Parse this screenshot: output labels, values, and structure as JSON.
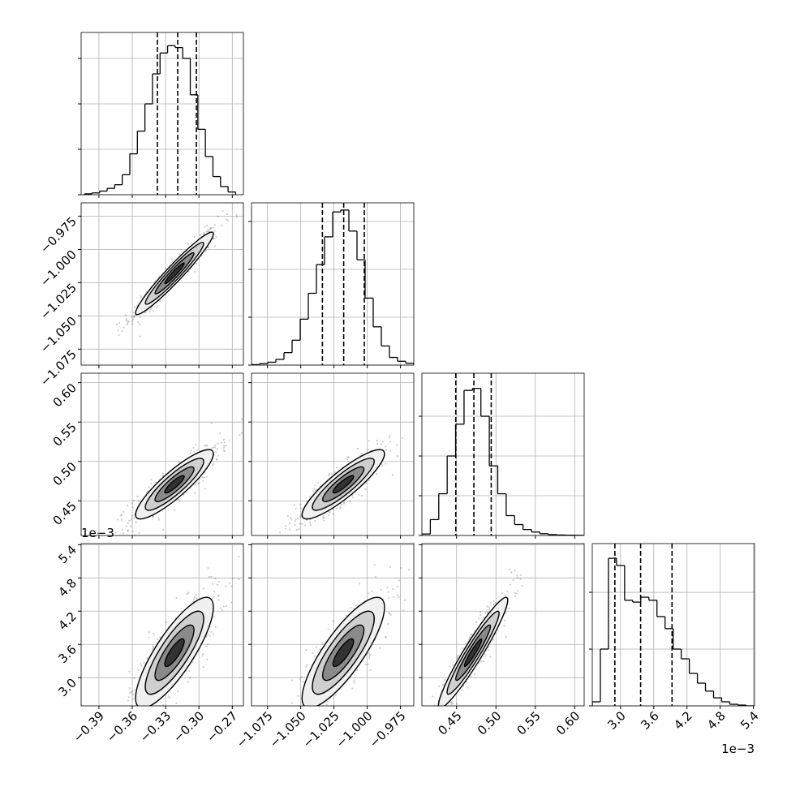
{
  "chart_data": {
    "type": "corner",
    "color": "#000000",
    "grid": true,
    "offset_label": "1e−3",
    "params": [
      {
        "lim": [
          -0.406,
          -0.26
        ],
        "ticks": [
          {
            "value": -0.39,
            "label": "−0.39"
          },
          {
            "value": -0.36,
            "label": "−0.36"
          },
          {
            "value": -0.33,
            "label": "−0.33"
          },
          {
            "value": -0.3,
            "label": "−0.30"
          },
          {
            "value": -0.27,
            "label": "−0.27"
          }
        ],
        "hist": {
          "bins": [
            -0.403,
            -0.3962,
            -0.3894,
            -0.3826,
            -0.3758,
            -0.369,
            -0.3622,
            -0.3554,
            -0.3486,
            -0.3418,
            -0.335,
            -0.3282,
            -0.3214,
            -0.3146,
            -0.3078,
            -0.301,
            -0.2942,
            -0.2874,
            -0.2806,
            -0.2738,
            -0.267
          ],
          "counts": [
            10,
            20,
            40,
            70,
            110,
            220,
            450,
            700,
            1000,
            1330,
            1560,
            1640,
            1620,
            1500,
            1100,
            720,
            420,
            200,
            90,
            30
          ],
          "ylim": [
            0,
            1786
          ],
          "yticks": [
            0,
            500,
            1000,
            1500
          ]
        },
        "quantiles": [
          -0.3374,
          -0.3191,
          -0.3023
        ],
        "pairs": []
      },
      {
        "lim": [
          -1.087,
          -0.965
        ],
        "ticks": [
          {
            "value": -1.075,
            "label": "−1.075"
          },
          {
            "value": -1.05,
            "label": "−1.050"
          },
          {
            "value": -1.025,
            "label": "−1.025"
          },
          {
            "value": -1,
            "label": "−1.000"
          },
          {
            "value": -0.975,
            "label": "−0.975"
          }
        ],
        "hist": {
          "bins": [
            -1.087,
            -1.0809,
            -1.0748,
            -1.0687,
            -1.0626,
            -1.0565,
            -1.0504,
            -1.0443,
            -1.0382,
            -1.0321,
            -1.026,
            -1.0199,
            -1.0138,
            -1.0077,
            -1.0016,
            -0.9955,
            -0.9894,
            -0.9833,
            -0.9772,
            -0.9711,
            -0.965
          ],
          "counts": [
            5,
            15,
            30,
            60,
            130,
            260,
            480,
            750,
            1050,
            1340,
            1600,
            1620,
            1400,
            1100,
            700,
            400,
            200,
            80,
            40,
            20
          ],
          "ylim": [
            0,
            1695
          ],
          "yticks": [
            0,
            500,
            1000,
            1500
          ]
        },
        "quantiles": [
          -1.0337,
          -1.0177,
          -1.0022
        ],
        "pairs": [
          {
            "mean": [
              -0.322,
              -1.018
            ],
            "std": [
              0.0175,
              0.0155
            ],
            "corr": 0.96
          }
        ]
      },
      {
        "lim": [
          0.406,
          0.612
        ],
        "ticks": [
          0.45,
          {
            "value": 0.5,
            "label": "0.50"
          },
          0.55,
          {
            "value": 0.6,
            "label": "0.60"
          }
        ],
        "hist": {
          "bins": [
            0.406,
            0.4167,
            0.4274,
            0.4381,
            0.4488,
            0.4595,
            0.4702,
            0.4809,
            0.4916,
            0.5023,
            0.513,
            0.5237,
            0.5344,
            0.5451,
            0.5558,
            0.5665,
            0.5772,
            0.5879,
            0.5986,
            0.6093,
            0.62
          ],
          "counts": [
            15,
            160,
            420,
            800,
            1120,
            1460,
            1480,
            1200,
            700,
            420,
            200,
            110,
            60,
            35,
            18,
            9,
            5,
            3,
            2,
            1
          ],
          "ylim": [
            0,
            1633
          ],
          "yticks": [
            0,
            400,
            800,
            1200
          ]
        },
        "quantiles": [
          0.449,
          0.472,
          0.494
        ],
        "pairs": [
          {
            "mean": [
              -0.322,
              0.471
            ],
            "std": [
              0.0175,
              0.022
            ],
            "corr": 0.88
          },
          {
            "mean": [
              -1.018,
              0.471
            ],
            "std": [
              0.0155,
              0.022
            ],
            "corr": 0.88
          }
        ]
      },
      {
        "lim": [
          2.49,
          5.42
        ],
        "ticks": [
          {
            "value": 3,
            "label": "3.0"
          },
          3.6,
          4.2,
          4.8,
          5.4
        ],
        "hist": {
          "bins": [
            2.49,
            2.636,
            2.782,
            2.928,
            3.074,
            3.22,
            3.366,
            3.512,
            3.658,
            3.804,
            3.95,
            4.096,
            4.242,
            4.388,
            4.534,
            4.68,
            4.826,
            4.972,
            5.118,
            5.264,
            5.41
          ],
          "counts": [
            36,
            500,
            1300,
            1236,
            930,
            914,
            957,
            930,
            786,
            680,
            500,
            414,
            286,
            200,
            130,
            71,
            36,
            14,
            7,
            0
          ],
          "ylim": [
            0,
            1429
          ],
          "yticks": [
            0,
            500,
            1000
          ]
        },
        "quantiles": [
          2.898,
          3.363,
          3.93
        ],
        "pairs": [
          {
            "mean": [
              -0.322,
              3.45
            ],
            "std": [
              0.0175,
              0.5
            ],
            "corr": 0.82
          },
          {
            "mean": [
              -1.018,
              3.45
            ],
            "std": [
              0.0155,
              0.5
            ],
            "corr": 0.82
          },
          {
            "mean": [
              0.471,
              3.45
            ],
            "std": [
              0.022,
              0.5
            ],
            "corr": 0.95
          }
        ]
      }
    ]
  }
}
